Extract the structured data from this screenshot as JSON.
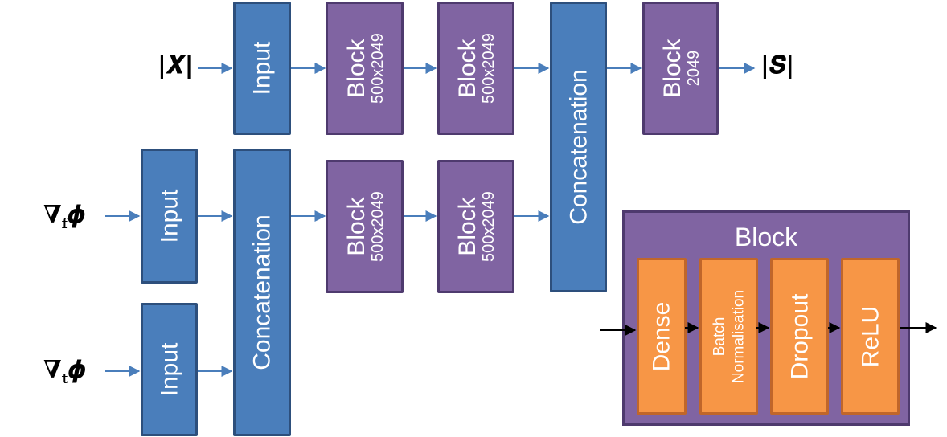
{
  "inputs": {
    "x_mag": "|𝑿|",
    "grad_f": "∇",
    "grad_f_sub": "f",
    "grad_t": "∇",
    "grad_t_sub": "t",
    "phi": "𝝓",
    "output": "|𝑺̂|"
  },
  "labels": {
    "input": "Input",
    "concatenation": "Concatenation",
    "block": "Block",
    "size_500": "500x2049",
    "size_2049": "2049"
  },
  "block_detail": {
    "title": "Block",
    "layers": {
      "dense": "Dense",
      "batch_line1": "Batch",
      "batch_line2": "Normalisation",
      "dropout": "Dropout",
      "relu": "ReLU"
    }
  },
  "colors": {
    "input_blue": "#4a7ebb",
    "block_purple": "#8064a2",
    "layer_orange": "#f79646"
  }
}
